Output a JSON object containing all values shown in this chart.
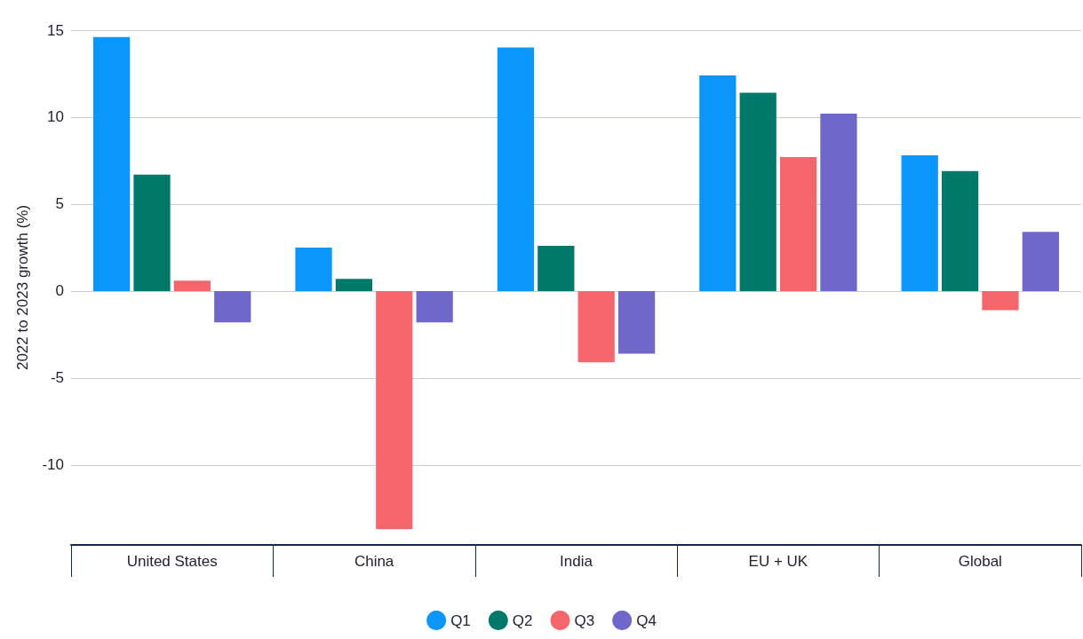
{
  "chart_data": {
    "type": "bar",
    "ylabel": "2022 to 2023 growth (%)",
    "categories": [
      "United States",
      "China",
      "India",
      "EU + UK",
      "Global"
    ],
    "series": [
      {
        "name": "Q1",
        "color": "#0a96fa",
        "values": [
          14.6,
          2.5,
          14.0,
          12.4,
          7.8
        ]
      },
      {
        "name": "Q2",
        "color": "#00796b",
        "values": [
          6.7,
          0.7,
          2.6,
          11.4,
          6.9
        ]
      },
      {
        "name": "Q3",
        "color": "#f4666b",
        "values": [
          0.6,
          -13.7,
          -4.1,
          7.7,
          -1.1
        ]
      },
      {
        "name": "Q4",
        "color": "#6f67c9",
        "values": [
          -1.8,
          -1.8,
          -3.6,
          10.2,
          3.4
        ]
      }
    ],
    "ylim": [
      -14.6,
      15
    ],
    "yticks": [
      -10,
      -5,
      0,
      5,
      10,
      15
    ],
    "grid": "y",
    "legend": "bottom"
  }
}
